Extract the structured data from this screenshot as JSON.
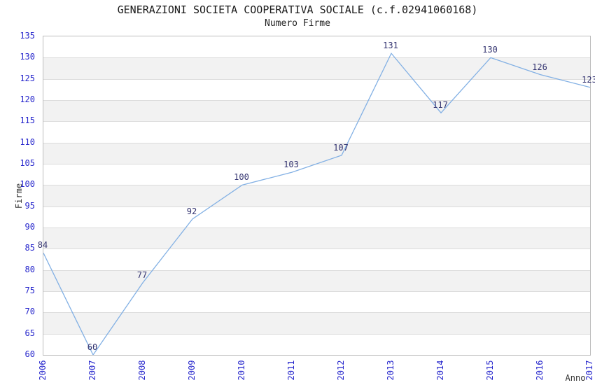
{
  "title": "GENERAZIONI SOCIETA COOPERATIVA SOCIALE (c.f.02941060168)",
  "subtitle": "Numero Firme",
  "chart_data": {
    "type": "line",
    "title": "GENERAZIONI SOCIETA COOPERATIVA SOCIALE (c.f.02941060168)",
    "subtitle": "Numero Firme",
    "x": [
      2006,
      2007,
      2008,
      2009,
      2010,
      2011,
      2012,
      2013,
      2014,
      2015,
      2016,
      2017
    ],
    "series": [
      {
        "name": "Numero Firme",
        "values": [
          84,
          60,
          77,
          92,
          100,
          103,
          107,
          131,
          117,
          130,
          126,
          123
        ]
      }
    ],
    "xlabel": "Anno",
    "ylabel": "Firme",
    "ylim": [
      60,
      135
    ],
    "ytick_step": 5,
    "grid": true,
    "legend_position": "none",
    "point_labels_visible": true,
    "colors": {
      "line": "#82b0e4",
      "tick_label": "#2626cc",
      "point_label": "#333370",
      "band": "#f2f2f2",
      "gridline": "#dcdcdc",
      "plot_border": "#bdbdbd",
      "title": "#1a1a1a",
      "axis_label": "#333333"
    }
  }
}
